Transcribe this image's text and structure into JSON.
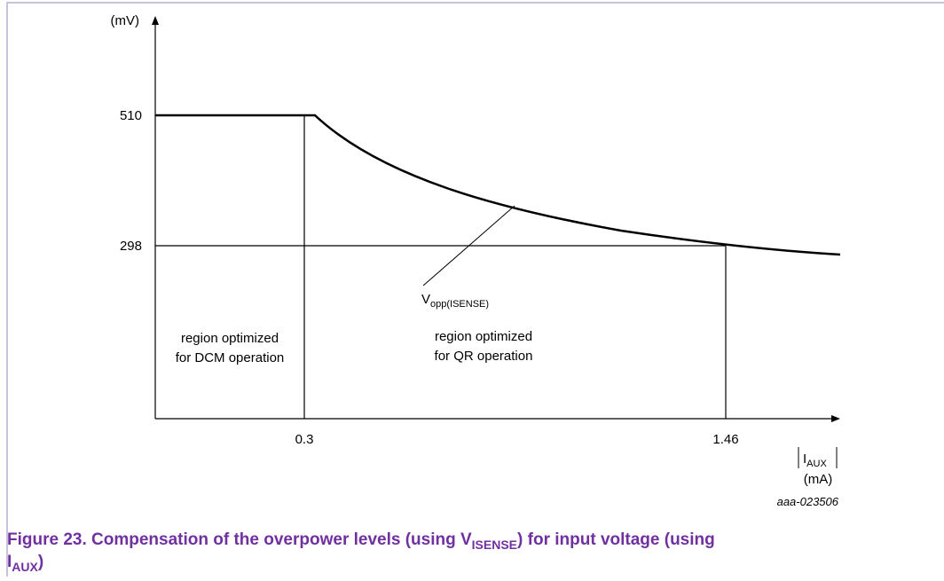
{
  "axes": {
    "y_unit": "(mV)",
    "y_ticks": [
      510,
      298
    ],
    "x_ticks": [
      0.3,
      1.46
    ],
    "x_label": {
      "main": "I",
      "sub": "AUX"
    },
    "x_unit": "(mA)"
  },
  "curve_label": {
    "main": "V",
    "sub": "opp(ISENSE)"
  },
  "regions": [
    [
      "region optimized",
      "for DCM operation"
    ],
    [
      "region optimized",
      "for QR operation"
    ]
  ],
  "figure_id": "aaa-023506",
  "caption": {
    "line1": [
      "Figure 23.  Compensation of the overpower levels (using V",
      "ISENSE",
      ") for input voltage (using"
    ],
    "line2": [
      "I",
      "AUX",
      ")"
    ]
  }
}
